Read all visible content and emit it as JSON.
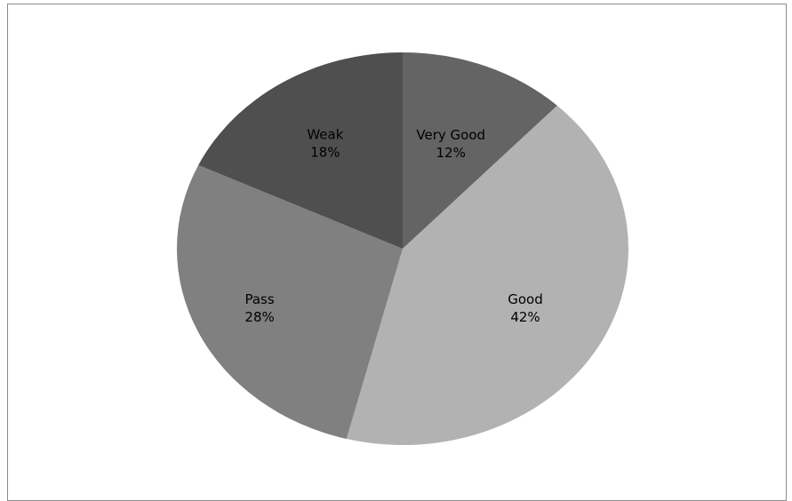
{
  "chart_data": {
    "type": "pie",
    "title": "",
    "categories": [
      "Very Good",
      "Good",
      "Pass",
      "Weak"
    ],
    "values": [
      12,
      42,
      28,
      18
    ],
    "value_labels": [
      "12%",
      "42%",
      "28%",
      "18%"
    ],
    "colors": [
      "#646464",
      "#b2b2b2",
      "#808080",
      "#4f4f4f"
    ],
    "start_angle_deg": 0,
    "direction": "clockwise",
    "legend": "none",
    "data_labels": "inside"
  }
}
